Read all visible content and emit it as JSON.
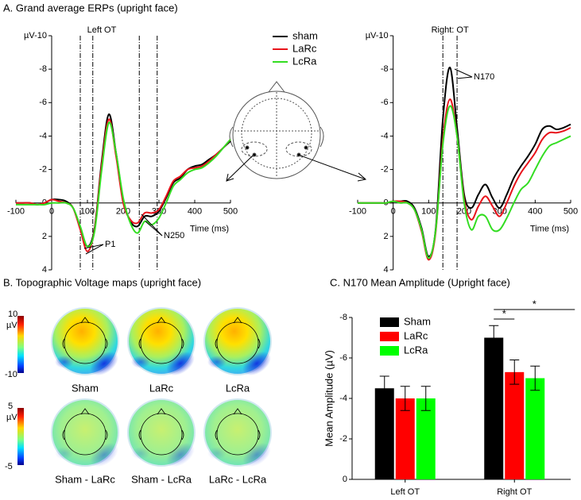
{
  "panel_a_title": "A. Grand average ERPs (upright face)",
  "chart_data": [
    {
      "type": "line",
      "title": "Left OT",
      "xlabel": "Time (ms)",
      "x": [
        -100,
        -80,
        -60,
        -40,
        -20,
        0,
        20,
        40,
        60,
        80,
        100,
        120,
        140,
        160,
        180,
        200,
        220,
        240,
        260,
        280,
        300,
        320,
        340,
        360,
        380,
        400,
        420,
        440,
        460,
        480,
        500
      ],
      "series": [
        {
          "name": "sham",
          "color": "#000000",
          "values": [
            0,
            0,
            0,
            0.1,
            0,
            -0.2,
            -0.2,
            -0.1,
            0.3,
            1.5,
            2.6,
            1.5,
            -2.5,
            -5.3,
            -3.0,
            -0.2,
            1.1,
            1.4,
            0.8,
            0.8,
            0.5,
            -0.3,
            -1.2,
            -1.5,
            -2.0,
            -2.2,
            -2.3,
            -2.6,
            -2.9,
            -3.3,
            -3.7
          ]
        },
        {
          "name": "LaRc",
          "color": "#e8131b",
          "values": [
            0,
            0,
            0,
            0.1,
            0,
            -0.2,
            -0.1,
            0,
            0.3,
            1.6,
            2.9,
            1.6,
            -2.3,
            -5.0,
            -2.8,
            0,
            1.0,
            1.2,
            0.6,
            0.6,
            0.4,
            -0.4,
            -1.3,
            -1.6,
            -2.0,
            -2.1,
            -2.2,
            -2.5,
            -2.9,
            -3.3,
            -3.8
          ]
        },
        {
          "name": "LcRa",
          "color": "#33dd22",
          "values": [
            0.1,
            0.1,
            0.1,
            0.1,
            0.1,
            0,
            0,
            0,
            0.3,
            1.4,
            2.6,
            1.7,
            -2.0,
            -4.8,
            -3.0,
            -0.3,
            1.2,
            1.8,
            1.1,
            1.3,
            0.9,
            0,
            -1.0,
            -1.4,
            -1.8,
            -2.0,
            -2.1,
            -2.4,
            -2.8,
            -3.3,
            -3.8
          ]
        }
      ],
      "xlim": [
        -100,
        500
      ],
      "xticks": [
        -100,
        0,
        100,
        200,
        300,
        400,
        500
      ],
      "ylim": [
        4,
        -10
      ],
      "yticks": [
        {
          "value": -10,
          "label": "µV-10"
        },
        -8,
        -6,
        -4,
        -2,
        0,
        2,
        4
      ],
      "vlines": [
        80,
        115,
        245,
        295
      ],
      "annotations": [
        "P1",
        "N250"
      ]
    },
    {
      "type": "line",
      "title": "Right: OT",
      "xlabel": "Time (ms)",
      "x": [
        -100,
        -80,
        -60,
        -40,
        -20,
        0,
        20,
        40,
        60,
        80,
        100,
        120,
        140,
        160,
        180,
        200,
        220,
        240,
        260,
        280,
        300,
        320,
        340,
        360,
        380,
        400,
        420,
        440,
        460,
        480,
        500
      ],
      "series": [
        {
          "color": "#000000",
          "values": [
            0,
            0,
            0,
            0,
            0,
            -0.1,
            -0.1,
            -0.1,
            0.3,
            1.5,
            3.2,
            1.5,
            -5.0,
            -8.1,
            -4.5,
            -0.5,
            0.3,
            -0.5,
            -1.1,
            -0.3,
            0.3,
            -0.5,
            -1.5,
            -2.2,
            -2.8,
            -3.5,
            -4.4,
            -4.6,
            -4.4,
            -4.5,
            -4.7
          ]
        },
        {
          "color": "#e8131b",
          "values": [
            0,
            0,
            0,
            0,
            0,
            -0.1,
            -0.1,
            0,
            0.4,
            1.7,
            3.4,
            1.7,
            -3.8,
            -6.2,
            -4.0,
            -0.2,
            1.0,
            0.2,
            -0.4,
            0.2,
            0.8,
            0,
            -1.0,
            -1.8,
            -2.4,
            -3.0,
            -3.8,
            -4.2,
            -4.2,
            -4.3,
            -4.5
          ]
        },
        {
          "color": "#33dd22",
          "values": [
            0,
            0,
            0,
            0,
            0,
            -0.1,
            0,
            0,
            0.4,
            1.6,
            3.3,
            1.6,
            -3.5,
            -5.8,
            -4.0,
            0,
            1.6,
            0.8,
            0.8,
            1.6,
            1.6,
            0.9,
            0,
            -0.8,
            -1.2,
            -2.0,
            -2.8,
            -3.4,
            -3.6,
            -3.8,
            -4.0
          ]
        }
      ],
      "xlim": [
        -100,
        500
      ],
      "xticks": [
        -100,
        0,
        100,
        200,
        300,
        400,
        500
      ],
      "ylim": [
        4,
        -10
      ],
      "yticks": [
        {
          "value": -10,
          "label": "µV-10"
        },
        -8,
        -6,
        -4,
        -2,
        0,
        2,
        4
      ],
      "vlines": [
        140,
        180
      ],
      "annotations": [
        "N170"
      ]
    },
    {
      "type": "bar",
      "title": "C. N170 Mean Amplitude (Upright face)",
      "ylabel": "Mean Amplitude (µV)",
      "categories": [
        "Left OT",
        "Right OT"
      ],
      "series": [
        {
          "name": "Sham",
          "color": "#000000",
          "values": [
            -4.5,
            -7.0
          ],
          "errors": [
            0.6,
            0.6
          ]
        },
        {
          "name": "LaRc",
          "color": "#ff0000",
          "values": [
            -4.0,
            -5.3
          ],
          "errors": [
            0.6,
            0.6
          ]
        },
        {
          "name": "LcRa",
          "color": "#00ff00",
          "values": [
            -4.0,
            -5.0
          ],
          "errors": [
            0.6,
            0.6
          ]
        }
      ],
      "ylim": [
        0,
        -8
      ],
      "yticks": [
        0,
        -2,
        -4,
        -6,
        -8
      ],
      "significance": [
        "*",
        "*"
      ]
    }
  ],
  "topo_maps": {
    "title": "B. Topographic Voltage maps (upright face)",
    "colorbars": [
      {
        "max": 10,
        "unit": "µV",
        "min": -10
      },
      {
        "max": 5,
        "unit": "µV",
        "min": -5
      }
    ],
    "rows": [
      [
        "Sham",
        "LaRc",
        "LcRa"
      ],
      [
        "Sham - LaRc",
        "Sham - LcRa",
        "LaRc - LcRa"
      ]
    ]
  }
}
